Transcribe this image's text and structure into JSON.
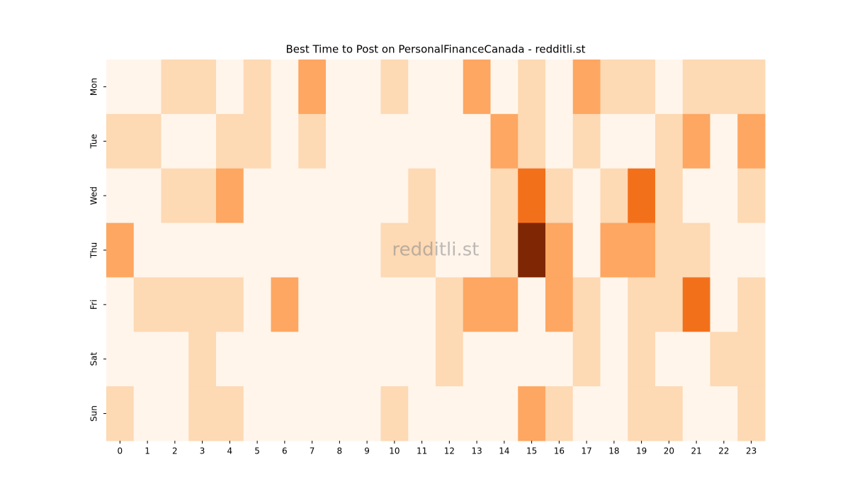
{
  "chart_data": {
    "type": "heatmap",
    "title": "Best Time to Post on PersonalFinanceCanada - redditli.st",
    "watermark": "redditli.st",
    "x": [
      0,
      1,
      2,
      3,
      4,
      5,
      6,
      7,
      8,
      9,
      10,
      11,
      12,
      13,
      14,
      15,
      16,
      17,
      18,
      19,
      20,
      21,
      22,
      23
    ],
    "y": [
      "Mon",
      "Tue",
      "Wed",
      "Thu",
      "Fri",
      "Sat",
      "Sun"
    ],
    "values": [
      [
        0,
        0,
        1,
        1,
        0,
        1,
        0,
        2,
        0,
        0,
        1,
        0,
        0,
        2,
        0,
        1,
        0,
        2,
        1,
        1,
        0,
        1,
        1,
        1
      ],
      [
        1,
        1,
        0,
        0,
        1,
        1,
        0,
        1,
        0,
        0,
        0,
        0,
        0,
        0,
        2,
        1,
        0,
        1,
        0,
        0,
        1,
        2,
        0,
        2
      ],
      [
        0,
        0,
        1,
        1,
        2,
        0,
        0,
        0,
        0,
        0,
        0,
        1,
        0,
        0,
        1,
        3,
        1,
        0,
        1,
        3,
        1,
        0,
        0,
        1
      ],
      [
        2,
        0,
        0,
        0,
        0,
        0,
        0,
        0,
        0,
        0,
        1,
        1,
        0,
        0,
        1,
        5,
        2,
        0,
        2,
        2,
        1,
        1,
        0,
        0
      ],
      [
        0,
        1,
        1,
        1,
        1,
        0,
        2,
        0,
        0,
        0,
        0,
        0,
        1,
        2,
        2,
        0,
        2,
        1,
        0,
        1,
        1,
        3,
        0,
        1
      ],
      [
        0,
        0,
        0,
        1,
        0,
        0,
        0,
        0,
        0,
        0,
        0,
        0,
        1,
        0,
        0,
        0,
        0,
        1,
        0,
        1,
        0,
        0,
        1,
        1
      ],
      [
        1,
        0,
        0,
        1,
        1,
        0,
        0,
        0,
        0,
        0,
        1,
        0,
        0,
        0,
        0,
        2,
        1,
        0,
        0,
        1,
        1,
        0,
        0,
        1
      ]
    ],
    "vmin": 0,
    "vmax": 5,
    "colorscale": [
      "#fff5eb",
      "#fdd9b4",
      "#fda762",
      "#f3701b",
      "#c44103",
      "#7f2704"
    ]
  }
}
